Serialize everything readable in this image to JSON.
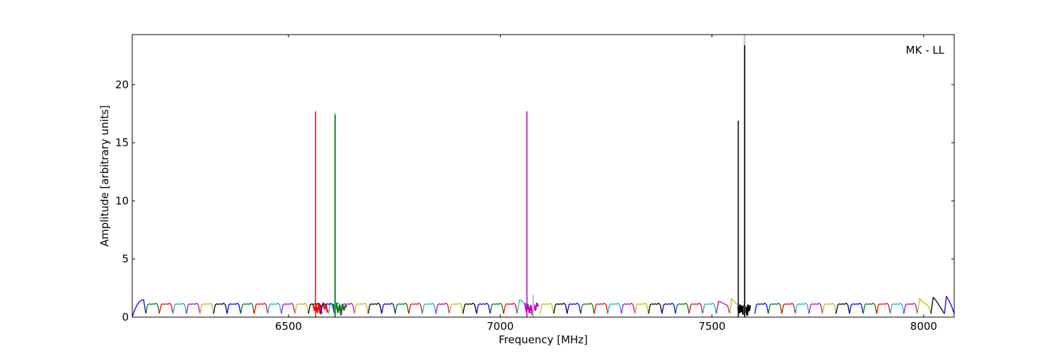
{
  "chart_data": {
    "type": "line",
    "title": "",
    "annotation": "MK - LL",
    "xlabel": "Frequency [MHz]",
    "ylabel": "Amplitude [arbitrary units]",
    "xlim": [
      6131,
      8072
    ],
    "ylim": [
      0,
      24.3
    ],
    "xticks": [
      6500,
      7000,
      7500,
      8000
    ],
    "yticks": [
      0,
      5,
      10,
      15,
      20
    ],
    "grid": false,
    "legend": "none",
    "colors": {
      "b": "#0000ff",
      "g": "#008000",
      "r": "#ff0000",
      "c": "#00bfbf",
      "m": "#bf00bf",
      "y": "#bfbf00",
      "k": "#000000",
      "gray": "#c8c8c8"
    },
    "profiles": {
      "flat": [
        0.3,
        1.05,
        1.15,
        1.1,
        1.15,
        1.1,
        1.2,
        1.05,
        0.3
      ]
    },
    "bands": [
      {
        "c": "b",
        "f": [
          6131,
          6163
        ],
        "y": [
          0.05,
          0.6,
          1.0,
          1.3,
          1.45,
          1.5,
          0.3
        ]
      },
      {
        "c": "g",
        "f": [
          6163,
          6195
        ],
        "p": "flat"
      },
      {
        "c": "r",
        "f": [
          6195,
          6227
        ],
        "p": "flat"
      },
      {
        "c": "c",
        "f": [
          6227,
          6259
        ],
        "p": "flat"
      },
      {
        "c": "m",
        "f": [
          6259,
          6291
        ],
        "p": "flat"
      },
      {
        "c": "y",
        "f": [
          6291,
          6323
        ],
        "p": "flat"
      },
      {
        "c": "k",
        "f": [
          6323,
          6355
        ],
        "p": "flat"
      },
      {
        "c": "b",
        "f": [
          6355,
          6387
        ],
        "p": "flat"
      },
      {
        "c": "g",
        "f": [
          6387,
          6419
        ],
        "p": "flat"
      },
      {
        "c": "r",
        "f": [
          6419,
          6451
        ],
        "p": "flat"
      },
      {
        "c": "c",
        "f": [
          6451,
          6483
        ],
        "p": "flat"
      },
      {
        "c": "m",
        "f": [
          6483,
          6515
        ],
        "p": "flat"
      },
      {
        "c": "y",
        "f": [
          6515,
          6547
        ],
        "p": "flat"
      },
      {
        "c": "k",
        "f": [
          6547,
          6579
        ],
        "p": "flat"
      },
      {
        "c": "r",
        "f": [
          6558,
          6592
        ],
        "y": [
          1.1,
          0.6,
          1.0,
          0.4,
          1.1,
          0.3,
          0.9,
          1.2,
          0.7,
          1.1,
          0.4
        ],
        "w": 2.2
      },
      {
        "c": "b",
        "f": [
          6576,
          6608
        ],
        "p": "flat"
      },
      {
        "c": "c",
        "f": [
          6594,
          6626
        ],
        "p": "flat"
      },
      {
        "c": "g",
        "f": [
          6606,
          6638
        ],
        "y": [
          1.1,
          0.5,
          1.2,
          0.4,
          1.0,
          0.2,
          1.1,
          0.6,
          1.0,
          0.9
        ],
        "w": 2.2
      },
      {
        "c": "m",
        "f": [
          6624,
          6656
        ],
        "p": "flat"
      },
      {
        "c": "y",
        "f": [
          6656,
          6688
        ],
        "p": "flat"
      },
      {
        "c": "k",
        "f": [
          6688,
          6720
        ],
        "p": "flat"
      },
      {
        "c": "b",
        "f": [
          6720,
          6752
        ],
        "p": "flat"
      },
      {
        "c": "g",
        "f": [
          6752,
          6784
        ],
        "p": "flat"
      },
      {
        "c": "r",
        "f": [
          6784,
          6816
        ],
        "p": "flat"
      },
      {
        "c": "c",
        "f": [
          6816,
          6848
        ],
        "p": "flat"
      },
      {
        "c": "m",
        "f": [
          6848,
          6880
        ],
        "p": "flat"
      },
      {
        "c": "y",
        "f": [
          6880,
          6912
        ],
        "p": "flat"
      },
      {
        "c": "k",
        "f": [
          6912,
          6944
        ],
        "p": "flat"
      },
      {
        "c": "b",
        "f": [
          6944,
          6976
        ],
        "p": "flat"
      },
      {
        "c": "g",
        "f": [
          6976,
          7008
        ],
        "p": "flat"
      },
      {
        "c": "r",
        "f": [
          7008,
          7040
        ],
        "p": "flat"
      },
      {
        "c": "c",
        "f": [
          7040,
          7072
        ],
        "y": [
          0.3,
          1.5,
          1.4,
          1.2,
          1.1,
          1.0,
          0.3
        ]
      },
      {
        "c": "m",
        "f": [
          7058,
          7090
        ],
        "y": [
          1.2,
          0.5,
          1.1,
          0.4,
          1.0,
          0.2,
          1.1,
          0.6,
          1.2,
          0.9
        ],
        "w": 2.2
      },
      {
        "c": "y",
        "f": [
          7094,
          7126
        ],
        "p": "flat"
      },
      {
        "c": "k",
        "f": [
          7126,
          7158
        ],
        "p": "flat"
      },
      {
        "c": "b",
        "f": [
          7158,
          7190
        ],
        "p": "flat"
      },
      {
        "c": "g",
        "f": [
          7190,
          7222
        ],
        "p": "flat"
      },
      {
        "c": "r",
        "f": [
          7222,
          7254
        ],
        "p": "flat"
      },
      {
        "c": "c",
        "f": [
          7254,
          7286
        ],
        "p": "flat"
      },
      {
        "c": "m",
        "f": [
          7286,
          7318
        ],
        "p": "flat"
      },
      {
        "c": "y",
        "f": [
          7318,
          7350
        ],
        "p": "flat"
      },
      {
        "c": "k",
        "f": [
          7350,
          7382
        ],
        "p": "flat"
      },
      {
        "c": "b",
        "f": [
          7382,
          7414
        ],
        "p": "flat"
      },
      {
        "c": "g",
        "f": [
          7414,
          7446
        ],
        "p": "flat"
      },
      {
        "c": "r",
        "f": [
          7446,
          7478
        ],
        "p": "flat"
      },
      {
        "c": "c",
        "f": [
          7478,
          7510
        ],
        "p": "flat"
      },
      {
        "c": "m",
        "f": [
          7510,
          7542
        ],
        "y": [
          0.3,
          1.35,
          1.3,
          1.2,
          1.1,
          1.0,
          0.3
        ]
      },
      {
        "c": "y",
        "f": [
          7542,
          7574
        ],
        "y": [
          0.3,
          1.6,
          1.4,
          1.2,
          1.1,
          1.0,
          0.9,
          0.3
        ]
      },
      {
        "c": "k",
        "f": [
          7562,
          7590
        ],
        "y": [
          0.9,
          0.4,
          1.0,
          0.5,
          0.9,
          0.3,
          1.0,
          0.5,
          0.8,
          0.2,
          1.0,
          0.6,
          1.0
        ],
        "w": 3
      },
      {
        "c": "b",
        "f": [
          7601,
          7633
        ],
        "p": "flat"
      },
      {
        "c": "g",
        "f": [
          7633,
          7665
        ],
        "p": "flat"
      },
      {
        "c": "r",
        "f": [
          7665,
          7697
        ],
        "p": "flat"
      },
      {
        "c": "c",
        "f": [
          7697,
          7729
        ],
        "p": "flat"
      },
      {
        "c": "m",
        "f": [
          7729,
          7761
        ],
        "p": "flat"
      },
      {
        "c": "y",
        "f": [
          7761,
          7793
        ],
        "p": "flat"
      },
      {
        "c": "k",
        "f": [
          7793,
          7825
        ],
        "p": "flat"
      },
      {
        "c": "b",
        "f": [
          7825,
          7857
        ],
        "p": "flat"
      },
      {
        "c": "g",
        "f": [
          7857,
          7889
        ],
        "p": "flat"
      },
      {
        "c": "r",
        "f": [
          7889,
          7921
        ],
        "p": "flat"
      },
      {
        "c": "c",
        "f": [
          7921,
          7953
        ],
        "p": "flat"
      },
      {
        "c": "m",
        "f": [
          7953,
          7985
        ],
        "p": "flat"
      },
      {
        "c": "y",
        "f": [
          7985,
          8017
        ],
        "y": [
          0.3,
          1.6,
          1.4,
          1.2,
          1.1,
          0.9,
          0.3
        ]
      },
      {
        "c": "k",
        "f": [
          8017,
          8049
        ],
        "y": [
          0.3,
          1.7,
          1.5,
          1.2,
          0.9,
          0.6,
          0.3
        ]
      },
      {
        "c": "b",
        "f": [
          8049,
          8072
        ],
        "y": [
          0.3,
          1.8,
          1.5,
          1.2,
          0.8,
          0.3
        ]
      }
    ],
    "spikes": [
      {
        "c": "gray",
        "f": 6610,
        "y": 17.6
      },
      {
        "c": "r",
        "f": 6564,
        "y": 17.7
      },
      {
        "c": "g",
        "f": 6610,
        "y": 17.4
      },
      {
        "c": "m",
        "f": 7063,
        "y": 17.7
      },
      {
        "c": "gray",
        "f": 7078,
        "y": 1.9
      },
      {
        "c": "gray",
        "f": 7577,
        "y": 24.3
      },
      {
        "c": "k",
        "f": 7562,
        "y": 16.9
      },
      {
        "c": "k",
        "f": 7577,
        "y": 23.4
      }
    ]
  }
}
